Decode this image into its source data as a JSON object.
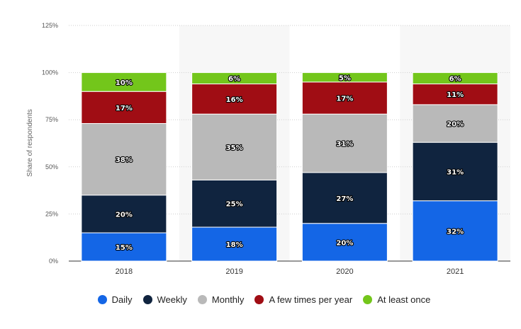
{
  "chart_data": {
    "type": "bar",
    "stacked": true,
    "categories": [
      "2018",
      "2019",
      "2020",
      "2021"
    ],
    "series": [
      {
        "name": "Daily",
        "values": [
          15,
          18,
          20,
          32
        ],
        "labels": [
          "15%",
          "18%",
          "20%",
          "32%"
        ],
        "color": "#1466e6"
      },
      {
        "name": "Weekly",
        "values": [
          20,
          25,
          27,
          31
        ],
        "labels": [
          "20%",
          "25%",
          "27%",
          "31%"
        ],
        "color": "#10243f"
      },
      {
        "name": "Monthly",
        "values": [
          38,
          35,
          31,
          20
        ],
        "labels": [
          "38%",
          "35%",
          "31%",
          "20%"
        ],
        "color": "#b9b9b9"
      },
      {
        "name": "A few times per year",
        "values": [
          17,
          16,
          17,
          11
        ],
        "labels": [
          "17%",
          "16%",
          "17%",
          "11%"
        ],
        "color": "#a00d14"
      },
      {
        "name": "At least once",
        "values": [
          10,
          6,
          5,
          6
        ],
        "labels": [
          "10%",
          "6%",
          "5%",
          "6%"
        ],
        "color": "#73c61b"
      }
    ],
    "ylabel": "Share of respondents",
    "xlabel": "",
    "ylim": [
      0,
      125
    ],
    "yticks": [
      0,
      25,
      50,
      75,
      100,
      125
    ],
    "ytick_labels": [
      "0%",
      "25%",
      "50%",
      "75%",
      "100%",
      "125%"
    ],
    "grid": true,
    "legend_position": "bottom"
  }
}
